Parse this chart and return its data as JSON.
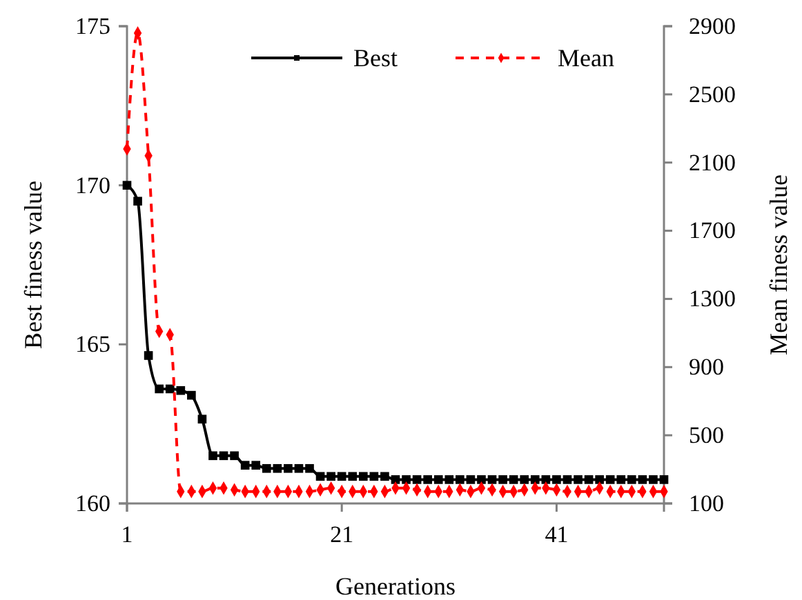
{
  "chart_data": {
    "type": "line",
    "xlabel": "Generations",
    "ylabel": "Best finess value",
    "y2label": "Mean finess value",
    "x": [
      1,
      2,
      3,
      4,
      5,
      6,
      7,
      8,
      9,
      10,
      11,
      12,
      13,
      14,
      15,
      16,
      17,
      18,
      19,
      20,
      21,
      22,
      23,
      24,
      25,
      26,
      27,
      28,
      29,
      30,
      31,
      32,
      33,
      34,
      35,
      36,
      37,
      38,
      39,
      40,
      41,
      42,
      43,
      44,
      45,
      46,
      47,
      48,
      49,
      50,
      51
    ],
    "xlim": [
      1,
      51
    ],
    "xticks": [
      1,
      21,
      41
    ],
    "ylim": [
      160,
      175
    ],
    "yticks": [
      160,
      165,
      170,
      175
    ],
    "y2lim": [
      100,
      2900
    ],
    "y2ticks": [
      100,
      500,
      900,
      1300,
      1700,
      2100,
      2500,
      2900
    ],
    "legend": "top right",
    "grid": false,
    "series": [
      {
        "name": "Best",
        "color": "#000000",
        "marker": "square",
        "line_style": "solid",
        "values": [
          170.0,
          169.5,
          164.65,
          163.6,
          163.6,
          163.55,
          163.4,
          162.65,
          161.5,
          161.5,
          161.5,
          161.2,
          161.2,
          161.1,
          161.1,
          161.1,
          161.1,
          161.1,
          160.85,
          160.85,
          160.85,
          160.85,
          160.85,
          160.85,
          160.85,
          160.75,
          160.75,
          160.75,
          160.75,
          160.75,
          160.75,
          160.75,
          160.75,
          160.75,
          160.75,
          160.75,
          160.75,
          160.75,
          160.75,
          160.75,
          160.75,
          160.75,
          160.75,
          160.75,
          160.75,
          160.75,
          160.75,
          160.75,
          160.75,
          160.75,
          160.75
        ]
      },
      {
        "name": "Mean",
        "color": "#ff0000",
        "marker": "diamond",
        "line_style": "dashed",
        "axis": "y2",
        "values": [
          2180,
          2860,
          2140,
          1110,
          1090,
          170,
          170,
          170,
          190,
          190,
          180,
          170,
          170,
          170,
          170,
          170,
          170,
          170,
          180,
          190,
          170,
          170,
          170,
          170,
          170,
          190,
          190,
          180,
          170,
          170,
          170,
          180,
          170,
          190,
          180,
          170,
          170,
          180,
          190,
          190,
          180,
          170,
          170,
          170,
          190,
          170,
          170,
          170,
          170,
          170,
          170
        ]
      }
    ]
  }
}
